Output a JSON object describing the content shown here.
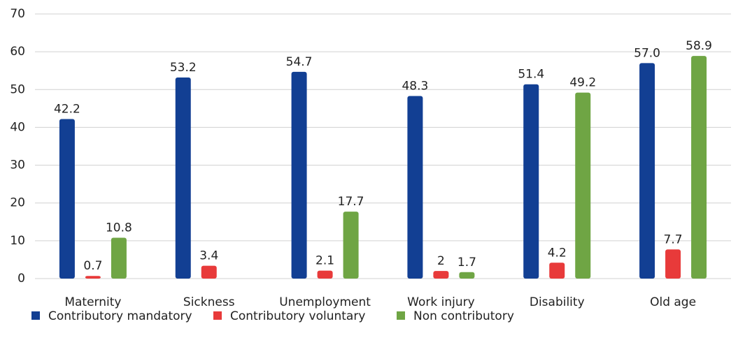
{
  "chart_data": {
    "type": "bar",
    "categories": [
      "Maternity",
      "Sickness",
      "Unemployment",
      "Work injury",
      "Disability",
      "Old age"
    ],
    "series": [
      {
        "name": "Contributory mandatory",
        "color": "#123f93",
        "values": [
          42.2,
          53.2,
          54.7,
          48.3,
          51.4,
          57.0
        ],
        "value_labels": [
          "42.2",
          "53.2",
          "54.7",
          "48.3",
          "51.4",
          "57.0"
        ]
      },
      {
        "name": "Contributory voluntary",
        "color": "#e83a3a",
        "values": [
          0.7,
          3.4,
          2.1,
          2.0,
          4.2,
          7.7
        ]
      },
      {
        "name": "Non contributory",
        "color": "#6fa544",
        "values": [
          10.8,
          null,
          17.7,
          1.7,
          49.2,
          58.9
        ]
      }
    ],
    "ylim": [
      0,
      70
    ],
    "yticks": [
      0,
      10,
      20,
      30,
      40,
      50,
      60,
      70
    ],
    "grid": true,
    "legend": "bottom"
  }
}
